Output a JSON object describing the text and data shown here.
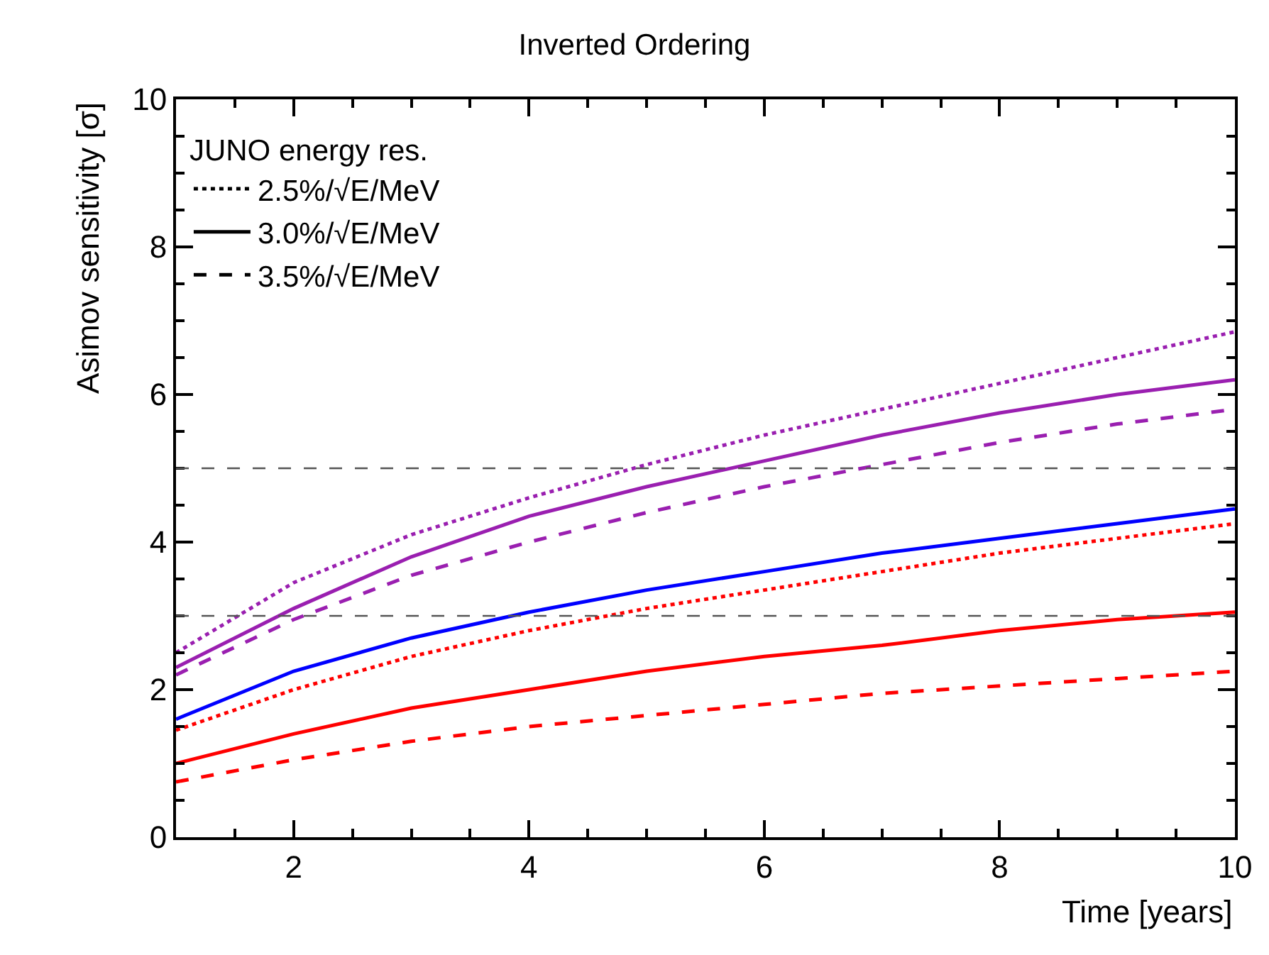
{
  "chart_data": {
    "type": "line",
    "title": "Inverted Ordering",
    "xlabel": "Time [years]",
    "ylabel": "Asimov sensitivity [σ]",
    "legend_title": "JUNO energy res.",
    "x": [
      1,
      2,
      3,
      4,
      5,
      6,
      7,
      8,
      9,
      10
    ],
    "xlim": [
      1,
      10
    ],
    "xticks": [
      2,
      4,
      6,
      8,
      10
    ],
    "ylim": [
      0,
      10
    ],
    "yticks": [
      0,
      2,
      4,
      6,
      8,
      10
    ],
    "legend": "top left",
    "marker": "none",
    "series": [
      {
        "name": "2.5%/√E/MeV",
        "color": "#000000",
        "line_style": "dotted",
        "values": [
          null,
          null,
          null,
          null,
          null,
          null,
          null,
          null,
          null,
          null
        ]
      },
      {
        "name": "3.0%/√E/MeV",
        "color": "#000000",
        "line_style": "solid",
        "values": [
          null,
          null,
          null,
          null,
          null,
          null,
          null,
          null,
          null,
          null
        ]
      },
      {
        "name": "3.5%/√E/MeV",
        "color": "#000000",
        "line_style": "dashed",
        "values": [
          null,
          null,
          null,
          null,
          null,
          null,
          null,
          null,
          null,
          null
        ]
      },
      {
        "color": "#9a1fb0",
        "line_style": "dotted",
        "values": [
          2.5,
          3.45,
          4.1,
          4.6,
          5.05,
          5.45,
          5.8,
          6.15,
          6.5,
          6.85
        ]
      },
      {
        "color": "#9a1fb0",
        "line_style": "solid",
        "values": [
          2.3,
          3.1,
          3.8,
          4.35,
          4.75,
          5.1,
          5.45,
          5.75,
          6.0,
          6.2
        ]
      },
      {
        "color": "#9a1fb0",
        "line_style": "dashed",
        "values": [
          2.2,
          2.95,
          3.55,
          4.0,
          4.4,
          4.75,
          5.05,
          5.35,
          5.6,
          5.8
        ]
      },
      {
        "color": "#0000ff",
        "line_style": "solid",
        "values": [
          1.6,
          2.25,
          2.7,
          3.05,
          3.35,
          3.6,
          3.85,
          4.05,
          4.25,
          4.45
        ]
      },
      {
        "color": "#ff0000",
        "line_style": "dotted",
        "values": [
          1.45,
          2.0,
          2.45,
          2.8,
          3.1,
          3.35,
          3.6,
          3.85,
          4.05,
          4.25
        ]
      },
      {
        "color": "#ff0000",
        "line_style": "solid",
        "values": [
          1.0,
          1.4,
          1.75,
          2.0,
          2.25,
          2.45,
          2.6,
          2.8,
          2.95,
          3.05
        ]
      },
      {
        "color": "#ff0000",
        "line_style": "dashed",
        "values": [
          0.75,
          1.05,
          1.3,
          1.5,
          1.65,
          1.8,
          1.95,
          2.05,
          2.15,
          2.25
        ]
      }
    ],
    "ref_lines": [
      {
        "axis": "y",
        "value": 3,
        "color": "#555555",
        "line_style": "dashed"
      },
      {
        "axis": "y",
        "value": 5,
        "color": "#555555",
        "line_style": "dashed"
      }
    ]
  }
}
